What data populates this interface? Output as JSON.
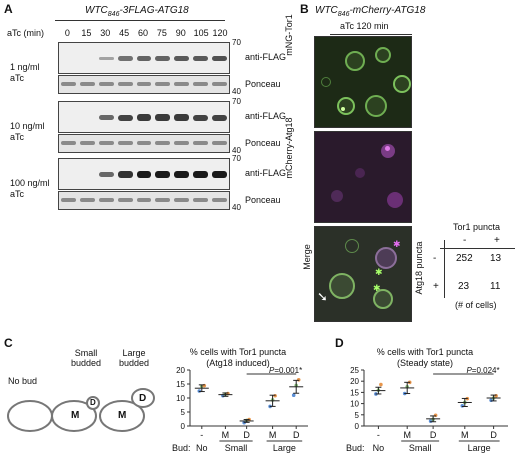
{
  "panelA": {
    "letter": "A",
    "title_italic": "WTC",
    "title_sub": "846",
    "title_rest": "-3FLAG-ATG18",
    "atc_label": "aTc (min)",
    "timepoints": [
      "0",
      "15",
      "30",
      "45",
      "60",
      "75",
      "90",
      "105",
      "120"
    ],
    "rows": [
      {
        "dose": "1 ng/ml",
        "unit": "aTc",
        "antibody": "anti-FLAG",
        "stain": "Ponceau",
        "mw_top": "70",
        "mw_bot": "40",
        "band_intensity": [
          0,
          0,
          0.15,
          0.45,
          0.55,
          0.55,
          0.6,
          0.6,
          0.65
        ]
      },
      {
        "dose": "10 ng/ml",
        "unit": "aTc",
        "antibody": "anti-FLAG",
        "stain": "Ponceau",
        "mw_top": "70",
        "mw_bot": "40",
        "band_intensity": [
          0,
          0,
          0.5,
          0.75,
          0.8,
          0.8,
          0.8,
          0.75,
          0.75
        ]
      },
      {
        "dose": "100 ng/ml",
        "unit": "aTc",
        "antibody": "anti-FLAG",
        "stain": "Ponceau",
        "mw_top": "70",
        "mw_bot": "40",
        "band_intensity": [
          0,
          0,
          0.5,
          0.85,
          1,
          1,
          1,
          1,
          1
        ]
      }
    ]
  },
  "panelB": {
    "letter": "B",
    "title_italic": "WTC",
    "title_sub": "846",
    "title_rest": "-mCherry-ATG18",
    "condition": "aTc 120 min",
    "channels": [
      "mNG-Tor1",
      "mCherry-Atg18",
      "Merge"
    ],
    "table": {
      "col_header": "Tor1 puncta",
      "row_header": "Atg18 puncta",
      "col_signs": [
        "-",
        "+"
      ],
      "row_signs": [
        "-",
        "+"
      ],
      "values": [
        [
          "252",
          "13"
        ],
        [
          "23",
          "11"
        ]
      ],
      "footnote": "(# of cells)"
    }
  },
  "panelC": {
    "letter": "C",
    "cartoon": {
      "no_bud": "No bud",
      "small_1": "Small",
      "small_2": "budded",
      "large_1": "Large",
      "large_2": "budded",
      "mother": "M",
      "daughter": "D"
    },
    "chart_data": {
      "type": "scatter",
      "title": "% cells with Tor1 puncta",
      "subtitle": "(Atg18 induced)",
      "ylim": [
        0,
        20
      ],
      "yticks": [
        "0",
        "5",
        "10",
        "15",
        "20"
      ],
      "x_labels": [
        "-",
        "M",
        "D",
        "M",
        "D"
      ],
      "bud_label": "Bud:",
      "groups": [
        "No",
        "Small",
        "Large"
      ],
      "means": [
        13.5,
        11.2,
        1.8,
        9.0,
        14.0
      ],
      "errors": [
        1.2,
        0.6,
        0.5,
        2.0,
        2.3
      ],
      "points": [
        [
          12.5,
          14.2,
          14.4
        ],
        [
          10.8,
          11.4,
          11.6
        ],
        [
          1.2,
          2.0,
          2.3
        ],
        [
          7.0,
          9.3,
          10.8
        ],
        [
          11.0,
          14.5,
          16.5
        ]
      ],
      "point_colors": [
        "#5b8fd6",
        "#8cc47a",
        "#e8964c"
      ],
      "sig_label": "P=0.001*"
    }
  },
  "panelD": {
    "letter": "D",
    "chart_data": {
      "type": "scatter",
      "title": "% cells with Tor1 puncta",
      "subtitle": "(Steady state)",
      "ylim": [
        0,
        25
      ],
      "yticks": [
        "0",
        "5",
        "10",
        "15",
        "20",
        "25"
      ],
      "x_labels": [
        "-",
        "M",
        "D",
        "M",
        "D"
      ],
      "bud_label": "Bud:",
      "groups": [
        "No",
        "Small",
        "Large"
      ],
      "means": [
        15.8,
        17.0,
        3.2,
        10.5,
        12.5
      ],
      "errors": [
        1.5,
        2.5,
        1.3,
        1.8,
        1.3
      ],
      "points": [
        [
          14.3,
          16.0,
          18.5
        ],
        [
          14.5,
          17.5,
          19.5
        ],
        [
          2.2,
          3.0,
          4.8
        ],
        [
          9.0,
          10.5,
          12.2
        ],
        [
          11.5,
          12.5,
          13.5
        ]
      ],
      "point_colors": [
        "#5b8fd6",
        "#8cc47a",
        "#e8964c"
      ],
      "sig_label": "P=0.024*"
    }
  }
}
